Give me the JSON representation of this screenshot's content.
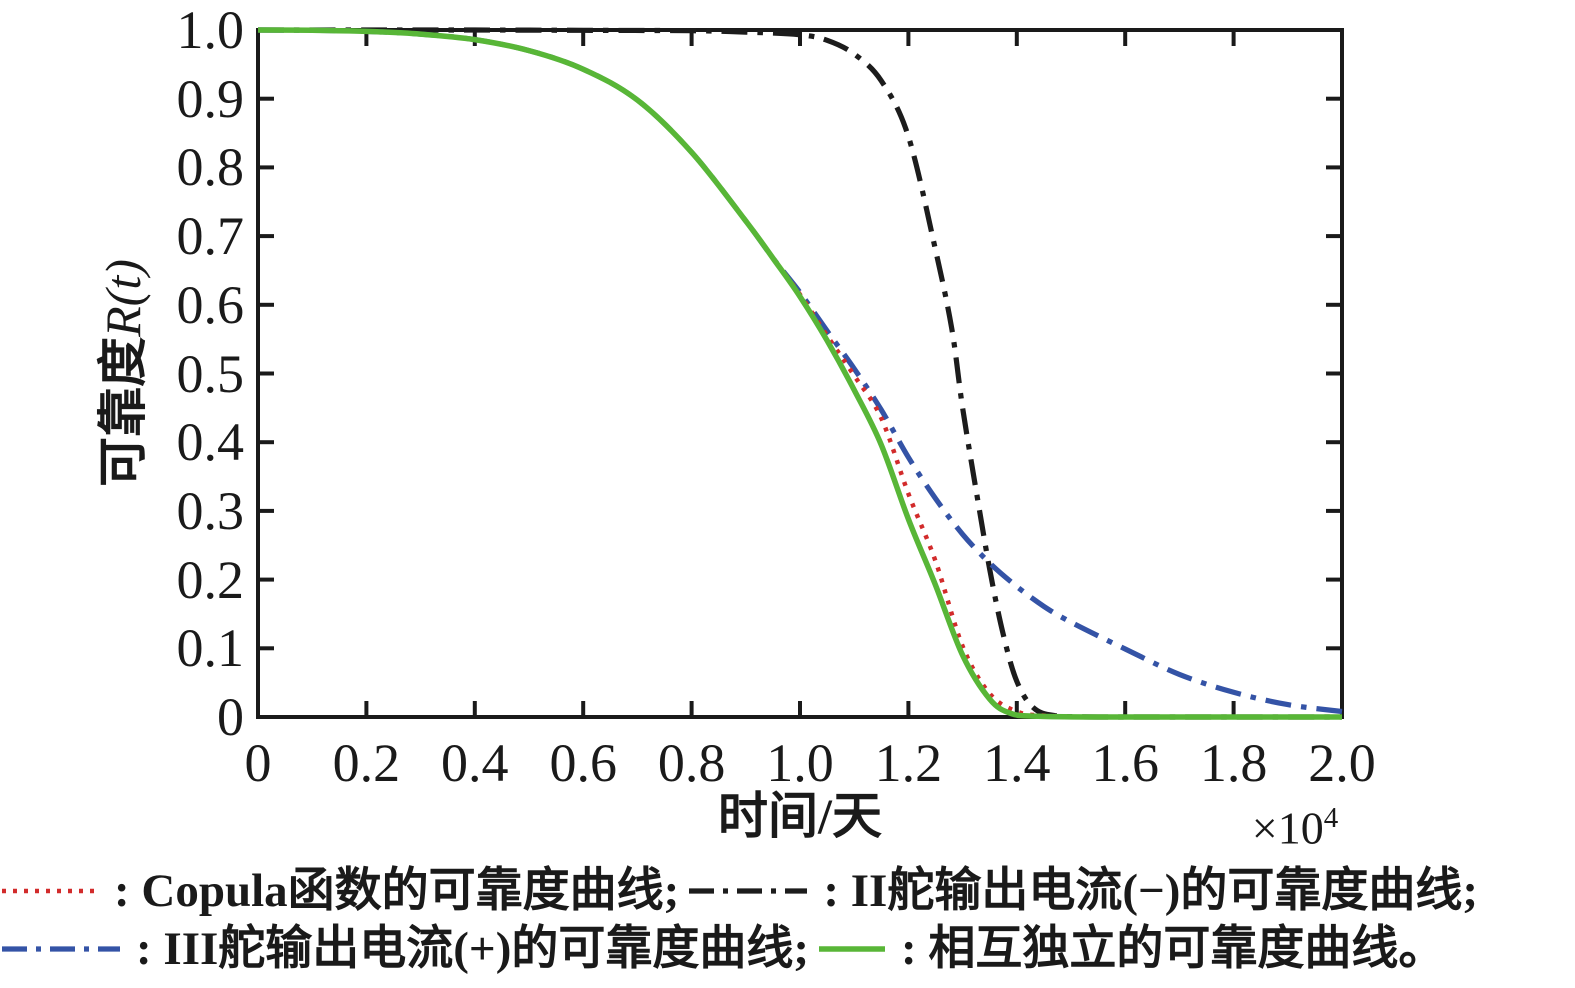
{
  "figure": {
    "background": "#ffffff",
    "text_color": "#1a1a1a",
    "frame_color": "#1a1a1a"
  },
  "chart_data": {
    "type": "line",
    "title": "",
    "xlabel": "时间/天",
    "ylabel_cjk": "可靠度",
    "ylabel_math": "R(t)",
    "x_multiplier_base": "×10",
    "x_multiplier_exp": "4",
    "xlim": [
      0,
      2.0
    ],
    "ylim": [
      0,
      1.0
    ],
    "grid": false,
    "legend_position": "below",
    "x_tick_values": [
      0,
      0.2,
      0.4,
      0.6,
      0.8,
      1.0,
      1.2,
      1.4,
      1.6,
      1.8,
      2.0
    ],
    "x_tick_labels": [
      "0",
      "0.2",
      "0.4",
      "0.6",
      "0.8",
      "1.0",
      "1.2",
      "1.4",
      "1.6",
      "1.8",
      "2.0"
    ],
    "y_tick_values": [
      0,
      0.1,
      0.2,
      0.3,
      0.4,
      0.5,
      0.6,
      0.7,
      0.8,
      0.9,
      1.0
    ],
    "y_tick_labels": [
      "0",
      "0.1",
      "0.2",
      "0.3",
      "0.4",
      "0.5",
      "0.6",
      "0.7",
      "0.8",
      "0.9",
      "1.0"
    ],
    "series": [
      {
        "key": "copula",
        "name": "Copula函数的可靠度曲线",
        "legend_label": ": Copula函数的可靠度曲线;",
        "color": "#d22b2b",
        "line_style": "dotted",
        "points": [
          [
            0,
            1.0
          ],
          [
            0.1,
            0.9995
          ],
          [
            0.2,
            0.998
          ],
          [
            0.3,
            0.994
          ],
          [
            0.4,
            0.986
          ],
          [
            0.5,
            0.97
          ],
          [
            0.6,
            0.943
          ],
          [
            0.7,
            0.898
          ],
          [
            0.8,
            0.822
          ],
          [
            0.9,
            0.722
          ],
          [
            0.95,
            0.668
          ],
          [
            1.0,
            0.615
          ],
          [
            1.05,
            0.555
          ],
          [
            1.1,
            0.497
          ],
          [
            1.15,
            0.435
          ],
          [
            1.2,
            0.325
          ],
          [
            1.25,
            0.227
          ],
          [
            1.3,
            0.103
          ],
          [
            1.35,
            0.034
          ],
          [
            1.4,
            0.008
          ],
          [
            1.45,
            0.002
          ],
          [
            1.55,
            0
          ],
          [
            1.7,
            0
          ],
          [
            1.85,
            0
          ],
          [
            2.0,
            0
          ]
        ]
      },
      {
        "key": "rudder-ii-minus",
        "name": "II舵输出电流(−)的可靠度曲线",
        "legend_label": ": II舵输出电流(−)的可靠度曲线;",
        "color": "#1c1c1c",
        "line_style": "dashdot",
        "points": [
          [
            0,
            1.0
          ],
          [
            0.2,
            1.0
          ],
          [
            0.4,
            1.0
          ],
          [
            0.6,
            0.9995
          ],
          [
            0.8,
            0.999
          ],
          [
            0.9,
            0.997
          ],
          [
            1.0,
            0.993
          ],
          [
            1.05,
            0.985
          ],
          [
            1.1,
            0.965
          ],
          [
            1.15,
            0.926
          ],
          [
            1.2,
            0.845
          ],
          [
            1.25,
            0.68
          ],
          [
            1.28,
            0.565
          ],
          [
            1.3,
            0.45
          ],
          [
            1.325,
            0.33
          ],
          [
            1.35,
            0.215
          ],
          [
            1.375,
            0.12
          ],
          [
            1.4,
            0.052
          ],
          [
            1.43,
            0.014
          ],
          [
            1.47,
            0.002
          ],
          [
            1.55,
            0
          ],
          [
            1.7,
            0
          ],
          [
            1.85,
            0
          ],
          [
            2.0,
            0
          ]
        ]
      },
      {
        "key": "rudder-iii-plus",
        "name": "III舵输出电流(+)的可靠度曲线",
        "legend_label": ": III舵输出电流(+)的可靠度曲线;",
        "color": "#3453a6",
        "line_style": "dashdot",
        "points": [
          [
            0,
            1.0
          ],
          [
            0.1,
            0.9995
          ],
          [
            0.2,
            0.998
          ],
          [
            0.3,
            0.994
          ],
          [
            0.4,
            0.986
          ],
          [
            0.5,
            0.97
          ],
          [
            0.6,
            0.943
          ],
          [
            0.7,
            0.898
          ],
          [
            0.8,
            0.822
          ],
          [
            0.9,
            0.722
          ],
          [
            0.95,
            0.668
          ],
          [
            1.0,
            0.618
          ],
          [
            1.05,
            0.562
          ],
          [
            1.1,
            0.507
          ],
          [
            1.15,
            0.447
          ],
          [
            1.2,
            0.378
          ],
          [
            1.25,
            0.318
          ],
          [
            1.3,
            0.266
          ],
          [
            1.35,
            0.224
          ],
          [
            1.4,
            0.19
          ],
          [
            1.45,
            0.161
          ],
          [
            1.5,
            0.138
          ],
          [
            1.6,
            0.099
          ],
          [
            1.7,
            0.062
          ],
          [
            1.8,
            0.036
          ],
          [
            1.9,
            0.018
          ],
          [
            2.0,
            0.008
          ]
        ]
      },
      {
        "key": "independent",
        "name": "相互独立的可靠度曲线",
        "legend_label": ": 相互独立的可靠度曲线。",
        "color": "#58b637",
        "line_style": "solid",
        "points": [
          [
            0,
            1.0
          ],
          [
            0.1,
            0.9995
          ],
          [
            0.2,
            0.998
          ],
          [
            0.3,
            0.994
          ],
          [
            0.4,
            0.986
          ],
          [
            0.5,
            0.97
          ],
          [
            0.6,
            0.943
          ],
          [
            0.7,
            0.898
          ],
          [
            0.8,
            0.822
          ],
          [
            0.9,
            0.722
          ],
          [
            0.95,
            0.668
          ],
          [
            1.0,
            0.612
          ],
          [
            1.05,
            0.548
          ],
          [
            1.1,
            0.476
          ],
          [
            1.15,
            0.396
          ],
          [
            1.2,
            0.288
          ],
          [
            1.25,
            0.192
          ],
          [
            1.3,
            0.09
          ],
          [
            1.35,
            0.026
          ],
          [
            1.39,
            0.005
          ],
          [
            1.44,
            0.001
          ],
          [
            1.55,
            0
          ],
          [
            1.7,
            0
          ],
          [
            1.85,
            0
          ],
          [
            2.0,
            0
          ]
        ]
      }
    ]
  },
  "legend": {
    "rows": [
      [
        0,
        1
      ],
      [
        2,
        3
      ]
    ]
  }
}
